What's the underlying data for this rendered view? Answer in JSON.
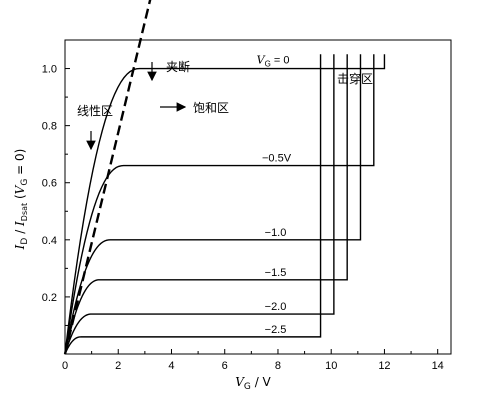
{
  "chart_data": {
    "type": "line",
    "title": "",
    "xlabel": "V_G / V",
    "xlabel_parts": {
      "var": "V",
      "sub": "G",
      "unit": " / V"
    },
    "ylabel_parts": {
      "a": "I",
      "a_sub": "D",
      "sep": " / ",
      "b": "I",
      "b_sub": "Dsat",
      "cond": " (V",
      "cond_sub": "G",
      "cond_end": " = 0)"
    },
    "xlim": [
      0,
      14.5
    ],
    "ylim": [
      0,
      1.1
    ],
    "xticks": [
      0,
      2,
      4,
      6,
      8,
      10,
      12,
      14
    ],
    "xtick_labels": [
      "0",
      "2",
      "4",
      "6",
      "8",
      "10",
      "12",
      "14"
    ],
    "yticks": [
      0.2,
      0.4,
      0.6,
      0.8,
      1.0
    ],
    "ytick_labels": [
      "0.2",
      "0.4",
      "0.6",
      "0.8",
      "1.0"
    ],
    "series": [
      {
        "label": "V_G = 0",
        "saturation": 1.0,
        "knee_x": 2.8,
        "breakdown_x": 12.0
      },
      {
        "label": "−0.5V",
        "saturation": 0.66,
        "knee_x": 2.2,
        "breakdown_x": 11.6
      },
      {
        "label": "−1.0",
        "saturation": 0.4,
        "knee_x": 1.7,
        "breakdown_x": 11.1
      },
      {
        "label": "−1.5",
        "saturation": 0.26,
        "knee_x": 1.3,
        "breakdown_x": 10.6
      },
      {
        "label": "−2.0",
        "saturation": 0.14,
        "knee_x": 1.0,
        "breakdown_x": 10.1
      },
      {
        "label": "−2.5",
        "saturation": 0.06,
        "knee_x": 0.6,
        "breakdown_x": 9.6
      }
    ],
    "pinchoff_line": {
      "x": [
        0,
        3.3
      ],
      "y": [
        0,
        1.28
      ],
      "style": "dashed"
    },
    "annotations": {
      "pinch_off": "夹断",
      "linear_region": "线性区",
      "saturation_region": "饱和区",
      "breakdown_region": "击穿区"
    }
  }
}
